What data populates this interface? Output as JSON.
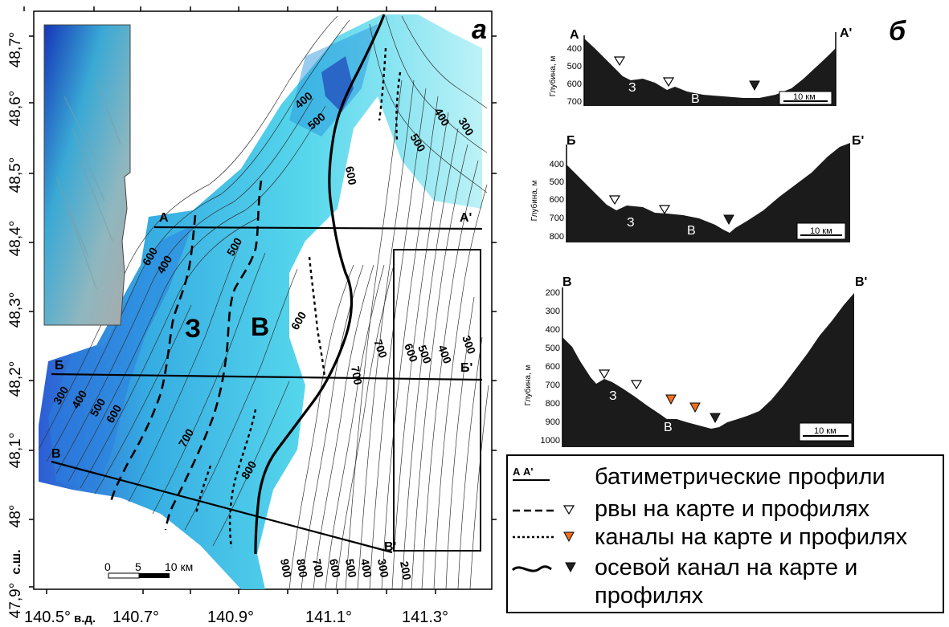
{
  "map": {
    "panel_label": "а",
    "lat_ticks": [
      "48,7°",
      "48,6°",
      "48,5°",
      "48,4°",
      "48,3°",
      "48,2°",
      "48,1°",
      "48°",
      "47,9°"
    ],
    "lat_unit": "с.ш.",
    "lon_ticks": [
      "140.5°",
      "140.7°",
      "140.9°",
      "141.1°",
      "141.3°"
    ],
    "lon_unit": "в.д.",
    "scale_bar": {
      "zero": "0",
      "mid": "5",
      "end": "10 км"
    },
    "zone_labels": {
      "west": "З",
      "east": "В"
    },
    "profile_labels": {
      "a_start": "А",
      "a_end": "А'",
      "b_start": "Б",
      "b_end": "Б'",
      "v_start": "В",
      "v_end": "В'"
    },
    "contour_labels": [
      "400",
      "500",
      "600",
      "300",
      "400",
      "500",
      "600",
      "400",
      "500",
      "600",
      "700",
      "700",
      "800",
      "900",
      "800",
      "700",
      "600",
      "500",
      "400",
      "300",
      "200",
      "700",
      "600",
      "500",
      "400",
      "300",
      "600",
      "500",
      "400",
      "300"
    ]
  },
  "profiles": {
    "panel_label": "б",
    "ylabel": "Глубина, м",
    "scale_label": "10 км",
    "profile_a": {
      "start": "А",
      "end": "А'",
      "ticks": [
        "400",
        "500",
        "600",
        "700"
      ],
      "zone_w": "З",
      "zone_e": "В"
    },
    "profile_b": {
      "start": "Б",
      "end": "Б'",
      "ticks": [
        "400",
        "500",
        "600",
        "700",
        "800"
      ],
      "zone_w": "З",
      "zone_e": "В"
    },
    "profile_v": {
      "start": "В",
      "end": "В'",
      "ticks": [
        "200",
        "300",
        "400",
        "500",
        "600",
        "700",
        "800",
        "900",
        "1000"
      ],
      "zone_w": "З",
      "zone_e": "В"
    }
  },
  "legend": {
    "profiles_key": "А   А'",
    "profiles_label": "батиметрические профили",
    "ditches_label": "рвы на карте и профилях",
    "channels_label": "каналы на карте и профилях",
    "axial_label_line1": "осевой канал на карте и",
    "axial_label_line2": "профилях"
  },
  "colors": {
    "water_shallow": "#bff3f7",
    "water_mid": "#39c6e6",
    "water_deep": "#1f48c9",
    "channel_orange": "#f07020",
    "profile_fill": "#1b1b1b"
  }
}
